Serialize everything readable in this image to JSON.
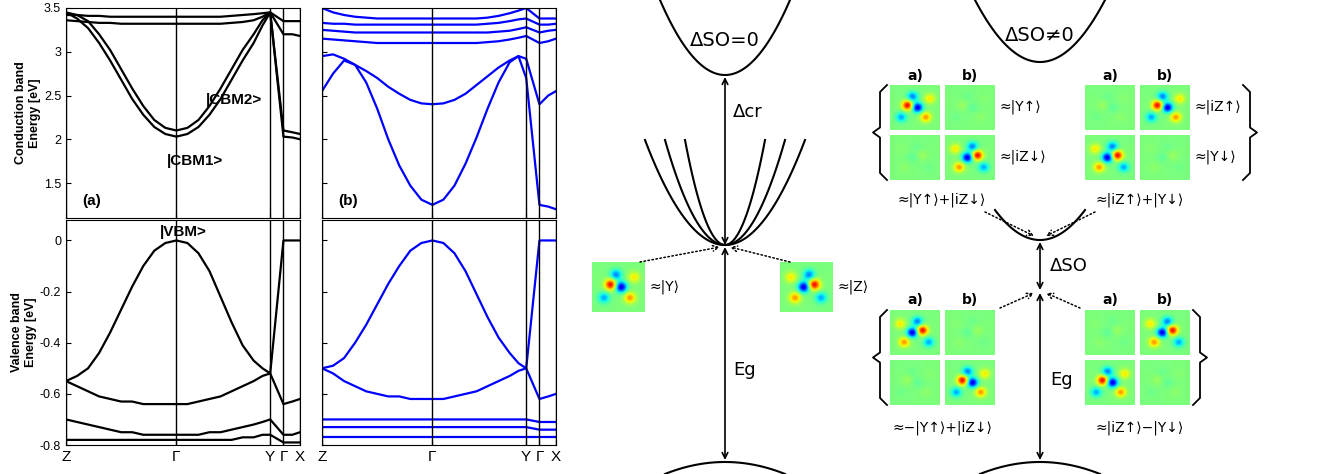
{
  "chart_data": [
    {
      "type": "line",
      "color": "#000000",
      "ylabel": "Conduction band\nEnergy [eV]",
      "annotations": [
        "(a)",
        "|CBM2>",
        "|CBM1>"
      ],
      "x": [
        0,
        0.1,
        0.2,
        0.3,
        0.4,
        0.5,
        0.6,
        0.7,
        0.8,
        0.9,
        1.0,
        1.1,
        1.2,
        1.3,
        1.4,
        1.5,
        1.6,
        1.7,
        1.78,
        1.85,
        1.97,
        2.05,
        2.12
      ],
      "xlim": [
        0,
        2.12
      ],
      "xticks": [
        {
          "value": 0,
          "label": "Z"
        },
        {
          "value": 1.0,
          "label": "Γ"
        },
        {
          "value": 1.85,
          "label": "Y"
        },
        {
          "value": 1.97,
          "label": "Γ"
        },
        {
          "value": 2.12,
          "label": "X"
        }
      ],
      "ylim": [
        1.1,
        3.5
      ],
      "yticks": [
        1.5,
        2,
        2.5,
        3,
        3.5
      ],
      "grid": "x",
      "tick_labels": "y",
      "series": [
        {
          "values": [
            3.45,
            3.38,
            3.27,
            3.1,
            2.9,
            2.68,
            2.46,
            2.28,
            2.14,
            2.06,
            2.03,
            2.06,
            2.14,
            2.28,
            2.46,
            2.68,
            2.9,
            3.1,
            3.3,
            3.45,
            2.03,
            2.02,
            2.0
          ]
        },
        {
          "values": [
            3.45,
            3.42,
            3.35,
            3.2,
            3.02,
            2.8,
            2.58,
            2.38,
            2.22,
            2.13,
            2.1,
            2.13,
            2.22,
            2.38,
            2.58,
            2.8,
            3.02,
            3.2,
            3.36,
            3.45,
            2.1,
            2.08,
            2.06
          ]
        },
        {
          "values": [
            3.36,
            3.35,
            3.34,
            3.33,
            3.33,
            3.32,
            3.32,
            3.32,
            3.32,
            3.32,
            3.32,
            3.32,
            3.32,
            3.32,
            3.32,
            3.33,
            3.34,
            3.36,
            3.4,
            3.45,
            3.2,
            3.2,
            3.18
          ]
        },
        {
          "values": [
            3.42,
            3.42,
            3.41,
            3.41,
            3.4,
            3.4,
            3.4,
            3.4,
            3.4,
            3.4,
            3.4,
            3.4,
            3.4,
            3.4,
            3.4,
            3.41,
            3.42,
            3.43,
            3.44,
            3.45,
            3.35,
            3.35,
            3.35
          ]
        }
      ]
    },
    {
      "type": "line",
      "color": "#000000",
      "ylabel": "Valence band\nEnergy [eV]",
      "annotations": [
        "|VBM>"
      ],
      "x": [
        0,
        0.1,
        0.2,
        0.3,
        0.4,
        0.5,
        0.6,
        0.7,
        0.8,
        0.9,
        1.0,
        1.1,
        1.2,
        1.3,
        1.4,
        1.5,
        1.6,
        1.7,
        1.78,
        1.85,
        1.97,
        2.05,
        2.12
      ],
      "xlim": [
        0,
        2.12
      ],
      "xticks": [
        {
          "value": 0,
          "label": "Z"
        },
        {
          "value": 1.0,
          "label": "Γ"
        },
        {
          "value": 1.85,
          "label": "Y"
        },
        {
          "value": 1.97,
          "label": "Γ"
        },
        {
          "value": 2.12,
          "label": "X"
        }
      ],
      "ylim": [
        -0.8,
        0.08
      ],
      "yticks": [
        -0.8,
        -0.6,
        -0.4,
        -0.2,
        0
      ],
      "grid": "x",
      "series": [
        {
          "values": [
            -0.55,
            -0.53,
            -0.5,
            -0.44,
            -0.36,
            -0.27,
            -0.18,
            -0.1,
            -0.04,
            -0.01,
            0,
            -0.01,
            -0.05,
            -0.12,
            -0.22,
            -0.32,
            -0.41,
            -0.47,
            -0.5,
            -0.52,
            0,
            0,
            0
          ]
        },
        {
          "values": [
            -0.55,
            -0.57,
            -0.59,
            -0.61,
            -0.62,
            -0.63,
            -0.63,
            -0.64,
            -0.64,
            -0.64,
            -0.64,
            -0.64,
            -0.63,
            -0.62,
            -0.61,
            -0.59,
            -0.57,
            -0.55,
            -0.53,
            -0.52,
            -0.64,
            -0.63,
            -0.62
          ]
        },
        {
          "values": [
            -0.7,
            -0.71,
            -0.72,
            -0.73,
            -0.74,
            -0.75,
            -0.75,
            -0.76,
            -0.76,
            -0.76,
            -0.76,
            -0.76,
            -0.76,
            -0.75,
            -0.75,
            -0.74,
            -0.73,
            -0.72,
            -0.71,
            -0.7,
            -0.76,
            -0.76,
            -0.75
          ]
        },
        {
          "values": [
            -0.78,
            -0.78,
            -0.78,
            -0.78,
            -0.78,
            -0.78,
            -0.78,
            -0.78,
            -0.78,
            -0.78,
            -0.78,
            -0.78,
            -0.78,
            -0.78,
            -0.78,
            -0.78,
            -0.77,
            -0.77,
            -0.76,
            -0.76,
            -0.79,
            -0.79,
            -0.79
          ]
        }
      ]
    },
    {
      "type": "line",
      "color": "#0000ff",
      "annotations": [
        "(b)"
      ],
      "x": [
        0,
        0.1,
        0.2,
        0.3,
        0.4,
        0.5,
        0.6,
        0.7,
        0.8,
        0.9,
        1.0,
        1.1,
        1.2,
        1.3,
        1.4,
        1.5,
        1.6,
        1.7,
        1.78,
        1.85,
        1.97,
        2.05,
        2.12
      ],
      "xlim": [
        0,
        2.12
      ],
      "xticks": [
        {
          "value": 0,
          "label": "Z"
        },
        {
          "value": 1.0,
          "label": "Γ"
        },
        {
          "value": 1.85,
          "label": "Y"
        },
        {
          "value": 1.97,
          "label": "Γ"
        },
        {
          "value": 2.12,
          "label": "X"
        }
      ],
      "ylim": [
        1.1,
        3.5
      ],
      "yticks": [
        1.5,
        2,
        2.5,
        3,
        3.5
      ],
      "grid": "x",
      "tick_labels": false,
      "series": [
        {
          "values": [
            2.55,
            2.75,
            2.9,
            2.85,
            2.65,
            2.35,
            2.0,
            1.7,
            1.47,
            1.31,
            1.25,
            1.31,
            1.47,
            1.72,
            2.02,
            2.35,
            2.65,
            2.88,
            2.95,
            2.7,
            1.25,
            1.23,
            1.2
          ]
        },
        {
          "values": [
            2.95,
            2.97,
            2.92,
            2.85,
            2.78,
            2.7,
            2.6,
            2.52,
            2.45,
            2.41,
            2.4,
            2.41,
            2.45,
            2.52,
            2.62,
            2.72,
            2.82,
            2.9,
            2.95,
            2.92,
            2.4,
            2.5,
            2.55
          ]
        },
        {
          "values": [
            3.15,
            3.14,
            3.13,
            3.12,
            3.11,
            3.1,
            3.1,
            3.1,
            3.1,
            3.1,
            3.1,
            3.1,
            3.1,
            3.1,
            3.1,
            3.11,
            3.12,
            3.14,
            3.16,
            3.18,
            3.1,
            3.12,
            3.15
          ]
        },
        {
          "values": [
            3.25,
            3.24,
            3.23,
            3.22,
            3.22,
            3.22,
            3.22,
            3.22,
            3.22,
            3.22,
            3.22,
            3.22,
            3.22,
            3.22,
            3.22,
            3.22,
            3.23,
            3.24,
            3.26,
            3.28,
            3.22,
            3.24,
            3.25
          ]
        },
        {
          "values": [
            3.33,
            3.32,
            3.32,
            3.31,
            3.31,
            3.31,
            3.31,
            3.31,
            3.31,
            3.31,
            3.31,
            3.31,
            3.31,
            3.31,
            3.31,
            3.32,
            3.33,
            3.35,
            3.37,
            3.38,
            3.31,
            3.31,
            3.32
          ]
        },
        {
          "values": [
            3.5,
            3.45,
            3.42,
            3.4,
            3.39,
            3.38,
            3.38,
            3.38,
            3.38,
            3.38,
            3.38,
            3.38,
            3.38,
            3.38,
            3.38,
            3.39,
            3.41,
            3.44,
            3.47,
            3.5,
            3.38,
            3.38,
            3.38
          ]
        }
      ]
    },
    {
      "type": "line",
      "color": "#0000ff",
      "x": [
        0,
        0.1,
        0.2,
        0.3,
        0.4,
        0.5,
        0.6,
        0.7,
        0.8,
        0.9,
        1.0,
        1.1,
        1.2,
        1.3,
        1.4,
        1.5,
        1.6,
        1.7,
        1.78,
        1.85,
        1.97,
        2.05,
        2.12
      ],
      "xlim": [
        0,
        2.12
      ],
      "xticks": [
        {
          "value": 0,
          "label": "Z"
        },
        {
          "value": 1.0,
          "label": "Γ"
        },
        {
          "value": 1.85,
          "label": "Y"
        },
        {
          "value": 1.97,
          "label": "Γ"
        },
        {
          "value": 2.12,
          "label": "X"
        }
      ],
      "ylim": [
        -0.8,
        0.08
      ],
      "yticks": [
        -0.8,
        -0.6,
        -0.4,
        -0.2,
        0
      ],
      "grid": "x",
      "tick_labels": "x",
      "series": [
        {
          "values": [
            -0.5,
            -0.49,
            -0.46,
            -0.4,
            -0.33,
            -0.25,
            -0.17,
            -0.1,
            -0.04,
            -0.01,
            0,
            -0.01,
            -0.05,
            -0.12,
            -0.21,
            -0.3,
            -0.38,
            -0.44,
            -0.48,
            -0.5,
            0,
            0,
            0
          ]
        },
        {
          "values": [
            -0.5,
            -0.52,
            -0.55,
            -0.57,
            -0.59,
            -0.6,
            -0.61,
            -0.61,
            -0.62,
            -0.62,
            -0.62,
            -0.62,
            -0.61,
            -0.6,
            -0.59,
            -0.57,
            -0.55,
            -0.53,
            -0.51,
            -0.5,
            -0.62,
            -0.61,
            -0.6
          ]
        },
        {
          "values": [
            -0.7,
            -0.7,
            -0.7,
            -0.7,
            -0.7,
            -0.7,
            -0.7,
            -0.7,
            -0.7,
            -0.7,
            -0.7,
            -0.7,
            -0.7,
            -0.7,
            -0.7,
            -0.7,
            -0.7,
            -0.7,
            -0.7,
            -0.7,
            -0.71,
            -0.71,
            -0.71
          ]
        },
        {
          "values": [
            -0.73,
            -0.73,
            -0.73,
            -0.73,
            -0.73,
            -0.73,
            -0.73,
            -0.73,
            -0.73,
            -0.73,
            -0.73,
            -0.73,
            -0.73,
            -0.73,
            -0.73,
            -0.73,
            -0.73,
            -0.73,
            -0.73,
            -0.73,
            -0.74,
            -0.74,
            -0.74
          ]
        },
        {
          "values": [
            -0.77,
            -0.77,
            -0.77,
            -0.77,
            -0.77,
            -0.77,
            -0.77,
            -0.77,
            -0.77,
            -0.77,
            -0.77,
            -0.77,
            -0.77,
            -0.77,
            -0.77,
            -0.77,
            -0.77,
            -0.77,
            -0.77,
            -0.77,
            -0.77,
            -0.77,
            -0.77
          ]
        }
      ]
    }
  ],
  "diagram": {
    "no_splitting": {
      "title": "ΔSO=0",
      "crystal_field": "Δcr",
      "gap": "Eg",
      "states": [
        "≈|Y⟩",
        "≈|Z⟩"
      ]
    },
    "with_splitting": {
      "title": "ΔSO≠0",
      "columns": [
        "a)",
        "b)"
      ],
      "upper_left": {
        "rows": [
          "≈|Y↑⟩",
          "≈|iZ↓⟩"
        ],
        "sum": "≈|Y↑⟩+|iZ↓⟩"
      },
      "upper_right": {
        "rows": [
          "≈|iZ↑⟩",
          "≈|Y↓⟩"
        ],
        "sum": "≈|iZ↑⟩+|Y↓⟩"
      },
      "spin_orbit": "ΔSO",
      "gap": "Eg",
      "lower_left": {
        "sum": "≈−|Y↑⟩+|iZ↓⟩"
      },
      "lower_right": {
        "sum": "≈|iZ↑⟩−|Y↓⟩"
      }
    }
  }
}
